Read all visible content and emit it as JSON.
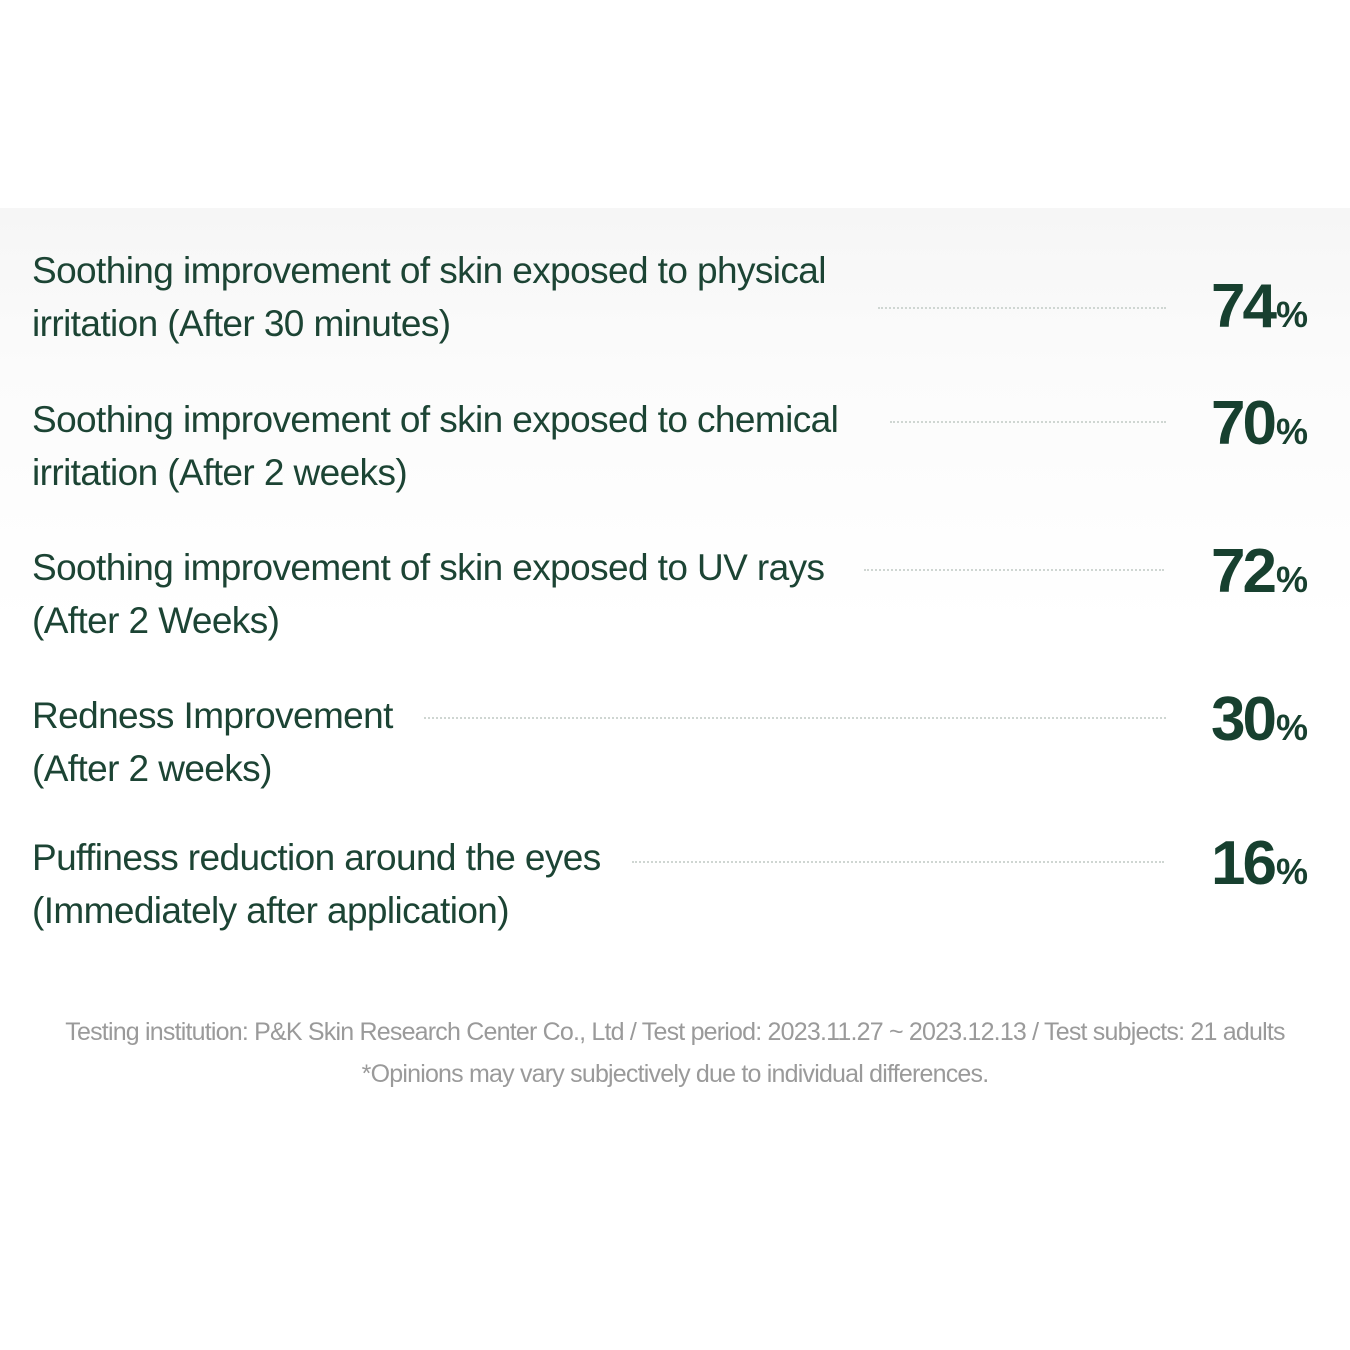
{
  "items": [
    {
      "label_line1": "Soothing improvement of skin exposed to physical",
      "label_line2": "irritation (After 30 minutes)",
      "value": "74",
      "unit": "%"
    },
    {
      "label_line1": "Soothing improvement of skin exposed to chemical",
      "label_line2": "irritation (After 2 weeks)",
      "value": "70",
      "unit": "%"
    },
    {
      "label_line1": "Soothing improvement of skin exposed to UV rays",
      "label_line2": "(After 2 Weeks)",
      "value": "72",
      "unit": "%"
    },
    {
      "label_line1": "Redness Improvement",
      "label_line2": "(After 2 weeks)",
      "value": "30",
      "unit": "%"
    },
    {
      "label_line1": "Puffiness reduction around the eyes",
      "label_line2": "(Immediately after application)",
      "value": "16",
      "unit": "%"
    }
  ],
  "footer": {
    "line1": "Testing institution: P&K Skin Research Center Co., Ltd / Test period: 2023.11.27 ~ 2023.12.13 / Test subjects: 21 adults",
    "line2": "*Opinions may vary subjectively due to individual differences."
  }
}
